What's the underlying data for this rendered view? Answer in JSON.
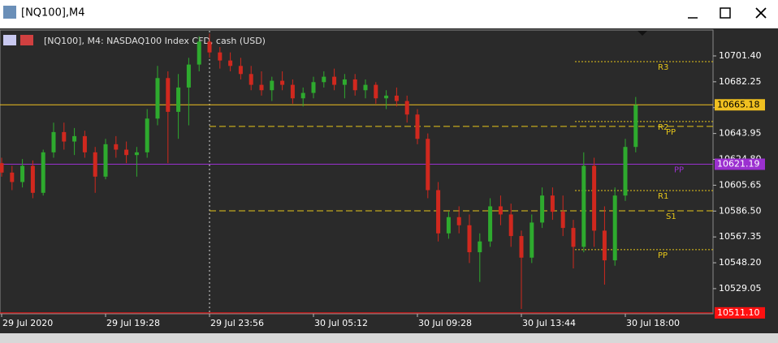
{
  "window": {
    "title": "[NQ100],M4"
  },
  "chart_data": {
    "type": "candlestick",
    "title": "[NQ100], M4:  NASDAQ100 Index CFD, cash (USD)",
    "categories": [
      "29 Jul 2020",
      null,
      null,
      null,
      null,
      null,
      null,
      null,
      null,
      null,
      "29 Jul 19:28",
      null,
      null,
      null,
      null,
      null,
      null,
      null,
      null,
      null,
      "29 Jul 23:56",
      null,
      null,
      null,
      null,
      null,
      null,
      null,
      null,
      null,
      "30 Jul 05:12",
      null,
      null,
      null,
      null,
      null,
      null,
      null,
      null,
      null,
      "30 Jul 09:28",
      null,
      null,
      null,
      null,
      null,
      null,
      null,
      null,
      null,
      "30 Jul 13:44",
      null,
      null,
      null,
      null,
      null,
      null,
      null,
      null,
      null,
      "30 Jul 18:00",
      null
    ],
    "open": [
      10622,
      10615,
      10608,
      10620,
      10600,
      10630,
      10645,
      10638,
      10642,
      10630,
      10612,
      10636,
      10632,
      10628,
      10630,
      10655,
      10685,
      10660,
      10678,
      10695,
      10712,
      10704,
      10698,
      10694,
      10688,
      10680,
      10676,
      10683,
      10680,
      10670,
      10674,
      10682,
      10686,
      10680,
      10684,
      10676,
      10680,
      10670,
      10672,
      10668,
      10658,
      10640,
      10602,
      10570,
      10582,
      10576,
      10556,
      10564,
      10590,
      10584,
      10568,
      10552,
      10578,
      10598,
      10586,
      10574,
      10560,
      10620,
      10572,
      10550,
      10598,
      10634
    ],
    "high": [
      10626,
      10620,
      10625,
      10624,
      10632,
      10652,
      10652,
      10648,
      10646,
      10634,
      10640,
      10642,
      10638,
      10634,
      10662,
      10694,
      10690,
      10688,
      10700,
      10716,
      10718,
      10708,
      10704,
      10700,
      10694,
      10690,
      10686,
      10690,
      10684,
      10678,
      10686,
      10690,
      10692,
      10688,
      10688,
      10684,
      10682,
      10676,
      10678,
      10672,
      10662,
      10644,
      10608,
      10586,
      10590,
      10584,
      10570,
      10596,
      10598,
      10592,
      10572,
      10584,
      10604,
      10604,
      10598,
      10580,
      10630,
      10626,
      10590,
      10604,
      10640,
      10671
    ],
    "low": [
      10612,
      10602,
      10604,
      10596,
      10598,
      10626,
      10632,
      10628,
      10626,
      10600,
      10610,
      10626,
      10622,
      10612,
      10626,
      10650,
      10622,
      10640,
      10650,
      10690,
      10700,
      10692,
      10690,
      10684,
      10676,
      10672,
      10668,
      10676,
      10666,
      10664,
      10670,
      10678,
      10676,
      10670,
      10672,
      10670,
      10666,
      10662,
      10664,
      10652,
      10636,
      10596,
      10564,
      10566,
      10570,
      10548,
      10534,
      10560,
      10576,
      10560,
      10514,
      10548,
      10574,
      10580,
      10568,
      10544,
      10556,
      10560,
      10532,
      10546,
      10594,
      10630
    ],
    "close": [
      10615,
      10608,
      10620,
      10600,
      10630,
      10645,
      10638,
      10642,
      10630,
      10612,
      10636,
      10632,
      10628,
      10630,
      10655,
      10685,
      10660,
      10678,
      10695,
      10712,
      10704,
      10698,
      10694,
      10688,
      10680,
      10676,
      10683,
      10680,
      10670,
      10674,
      10682,
      10686,
      10680,
      10684,
      10676,
      10680,
      10670,
      10672,
      10668,
      10658,
      10640,
      10602,
      10570,
      10582,
      10576,
      10556,
      10564,
      10590,
      10584,
      10568,
      10552,
      10578,
      10598,
      10586,
      10574,
      10560,
      10620,
      10572,
      10550,
      10598,
      10634,
      10665
    ],
    "up_color": "#2eaa2e",
    "down_color": "#d0281e",
    "ylim": [
      10510.4,
      10720.0
    ],
    "yticks": [
      {
        "value": 10529.05,
        "label": "10529.05"
      },
      {
        "value": 10548.2,
        "label": "10548.20"
      },
      {
        "value": 10567.35,
        "label": "10567.35"
      },
      {
        "value": 10586.5,
        "label": "10586.50"
      },
      {
        "value": 10605.65,
        "label": "10605.65"
      },
      {
        "value": 10624.8,
        "label": "10624.80"
      },
      {
        "value": 10643.95,
        "label": "10643.95"
      },
      {
        "value": 10663.1,
        "label": "10663.10"
      },
      {
        "value": 10682.25,
        "label": "10682.25"
      },
      {
        "value": 10701.4,
        "label": "10701.40"
      }
    ],
    "levels": [
      {
        "name": "R3",
        "value": 10697.2,
        "color": "#e6c619",
        "style": "dotted"
      },
      {
        "name": "R2",
        "value": 10652.8,
        "color": "#e6c619",
        "style": "dotted"
      },
      {
        "name": "PP",
        "value": 10649.2,
        "color": "#e6c619",
        "style": "dashed"
      },
      {
        "name": "R1",
        "value": 10601.7,
        "color": "#e6c619",
        "style": "dotted"
      },
      {
        "name": "S1",
        "value": 10586.7,
        "color": "#e6c619",
        "style": "dashed"
      },
      {
        "name": "PP",
        "value": 10557.9,
        "color": "#e6c619",
        "style": "dotted"
      },
      {
        "name": "PP",
        "value": 10621.19,
        "color": "#9b30d0",
        "style": "solid",
        "tag": true
      },
      {
        "value": 10665.18,
        "color": "#f0c020",
        "style": "solid",
        "tag": true
      },
      {
        "value": 10511.1,
        "value_label": "10511.10",
        "color": "#ff1010",
        "style": "solid",
        "tag": true
      }
    ]
  }
}
